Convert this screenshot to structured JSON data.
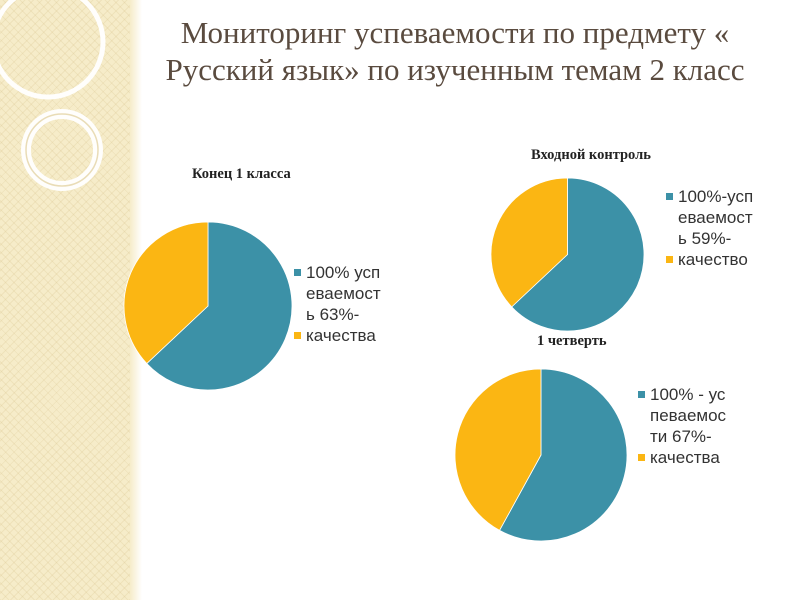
{
  "slide_title": "Мониторинг успеваемости по предмету « Русский язык» по изученным темам 2 класс",
  "colors": {
    "success": "#3c91a7",
    "quality": "#fbb613",
    "title": "#5a4b3f",
    "band": "#f6ecc9"
  },
  "chart_data": [
    {
      "type": "pie",
      "title": "Конец 1 класса",
      "slices": [
        {
          "label": "100% успеваемость",
          "value": 63,
          "color": "#3c91a7"
        },
        {
          "label": "63%-качества",
          "value": 37,
          "color": "#fbb613"
        }
      ],
      "legend": [
        {
          "text": "100% успеваемость 63%-",
          "color": "#3c91a7"
        },
        {
          "text": "качества",
          "color": "#fbb613"
        }
      ]
    },
    {
      "type": "pie",
      "title": "Входной контроль",
      "slices": [
        {
          "label": "100%-успеваемость",
          "value": 63,
          "color": "#3c91a7"
        },
        {
          "label": "59%-качество",
          "value": 37,
          "color": "#fbb613"
        }
      ],
      "legend": [
        {
          "text": "100%-успеваемость 59%-",
          "color": "#3c91a7"
        },
        {
          "text": "качество",
          "color": "#fbb613"
        }
      ]
    },
    {
      "type": "pie",
      "title": "1 четверть",
      "slices": [
        {
          "label": "100% - успеваемости",
          "value": 58,
          "color": "#3c91a7"
        },
        {
          "label": "67%-качества",
          "value": 42,
          "color": "#fbb613"
        }
      ],
      "legend": [
        {
          "text": "100% - успеваемости 67%-",
          "color": "#3c91a7"
        },
        {
          "text": "качества",
          "color": "#fbb613"
        }
      ]
    }
  ]
}
